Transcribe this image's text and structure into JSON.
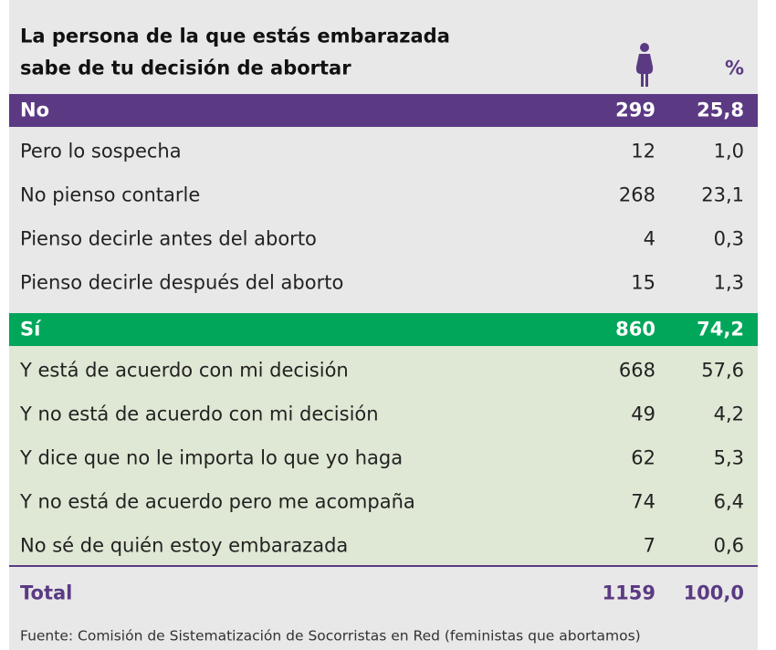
{
  "header": {
    "title": [
      "La persona de la que estás embarazada",
      "sabe de tu decisión de abortar"
    ],
    "percent_heading": "%"
  },
  "table": {
    "groups": [
      {
        "label": "No",
        "count": 299,
        "percent": "25,8",
        "color": "#5b3a83",
        "rows": [
          {
            "label": "Pero lo sospecha",
            "count": 12,
            "percent": "1,0"
          },
          {
            "label": "No pienso contarle",
            "count": 268,
            "percent": "23,1"
          },
          {
            "label": "Pienso decirle antes del aborto",
            "count": 4,
            "percent": "0,3"
          },
          {
            "label": "Pienso decirle después del aborto",
            "count": 15,
            "percent": "1,3"
          }
        ]
      },
      {
        "label": "Sí",
        "count": 860,
        "percent": "74,2",
        "color": "#00a65a",
        "rows_background": "#dfe8d4",
        "rows": [
          {
            "label": "Y está de acuerdo con mi decisión",
            "count": 668,
            "percent": "57,6"
          },
          {
            "label": "Y no está de acuerdo con mi decisión",
            "count": 49,
            "percent": "4,2"
          },
          {
            "label": "Y dice que no le importa lo que yo haga",
            "count": 62,
            "percent": "5,3"
          },
          {
            "label": "Y no está de acuerdo pero me acompaña",
            "count": 74,
            "percent": "6,4"
          },
          {
            "label": "No sé de quién estoy embarazada",
            "count": 7,
            "percent": "0,6"
          }
        ]
      }
    ],
    "total": {
      "label": "Total",
      "count": 1159,
      "percent": "100,0"
    }
  },
  "source": "Fuente: Comisión de Sistematización de Socorristas en Red (feministas que abortamos)"
}
